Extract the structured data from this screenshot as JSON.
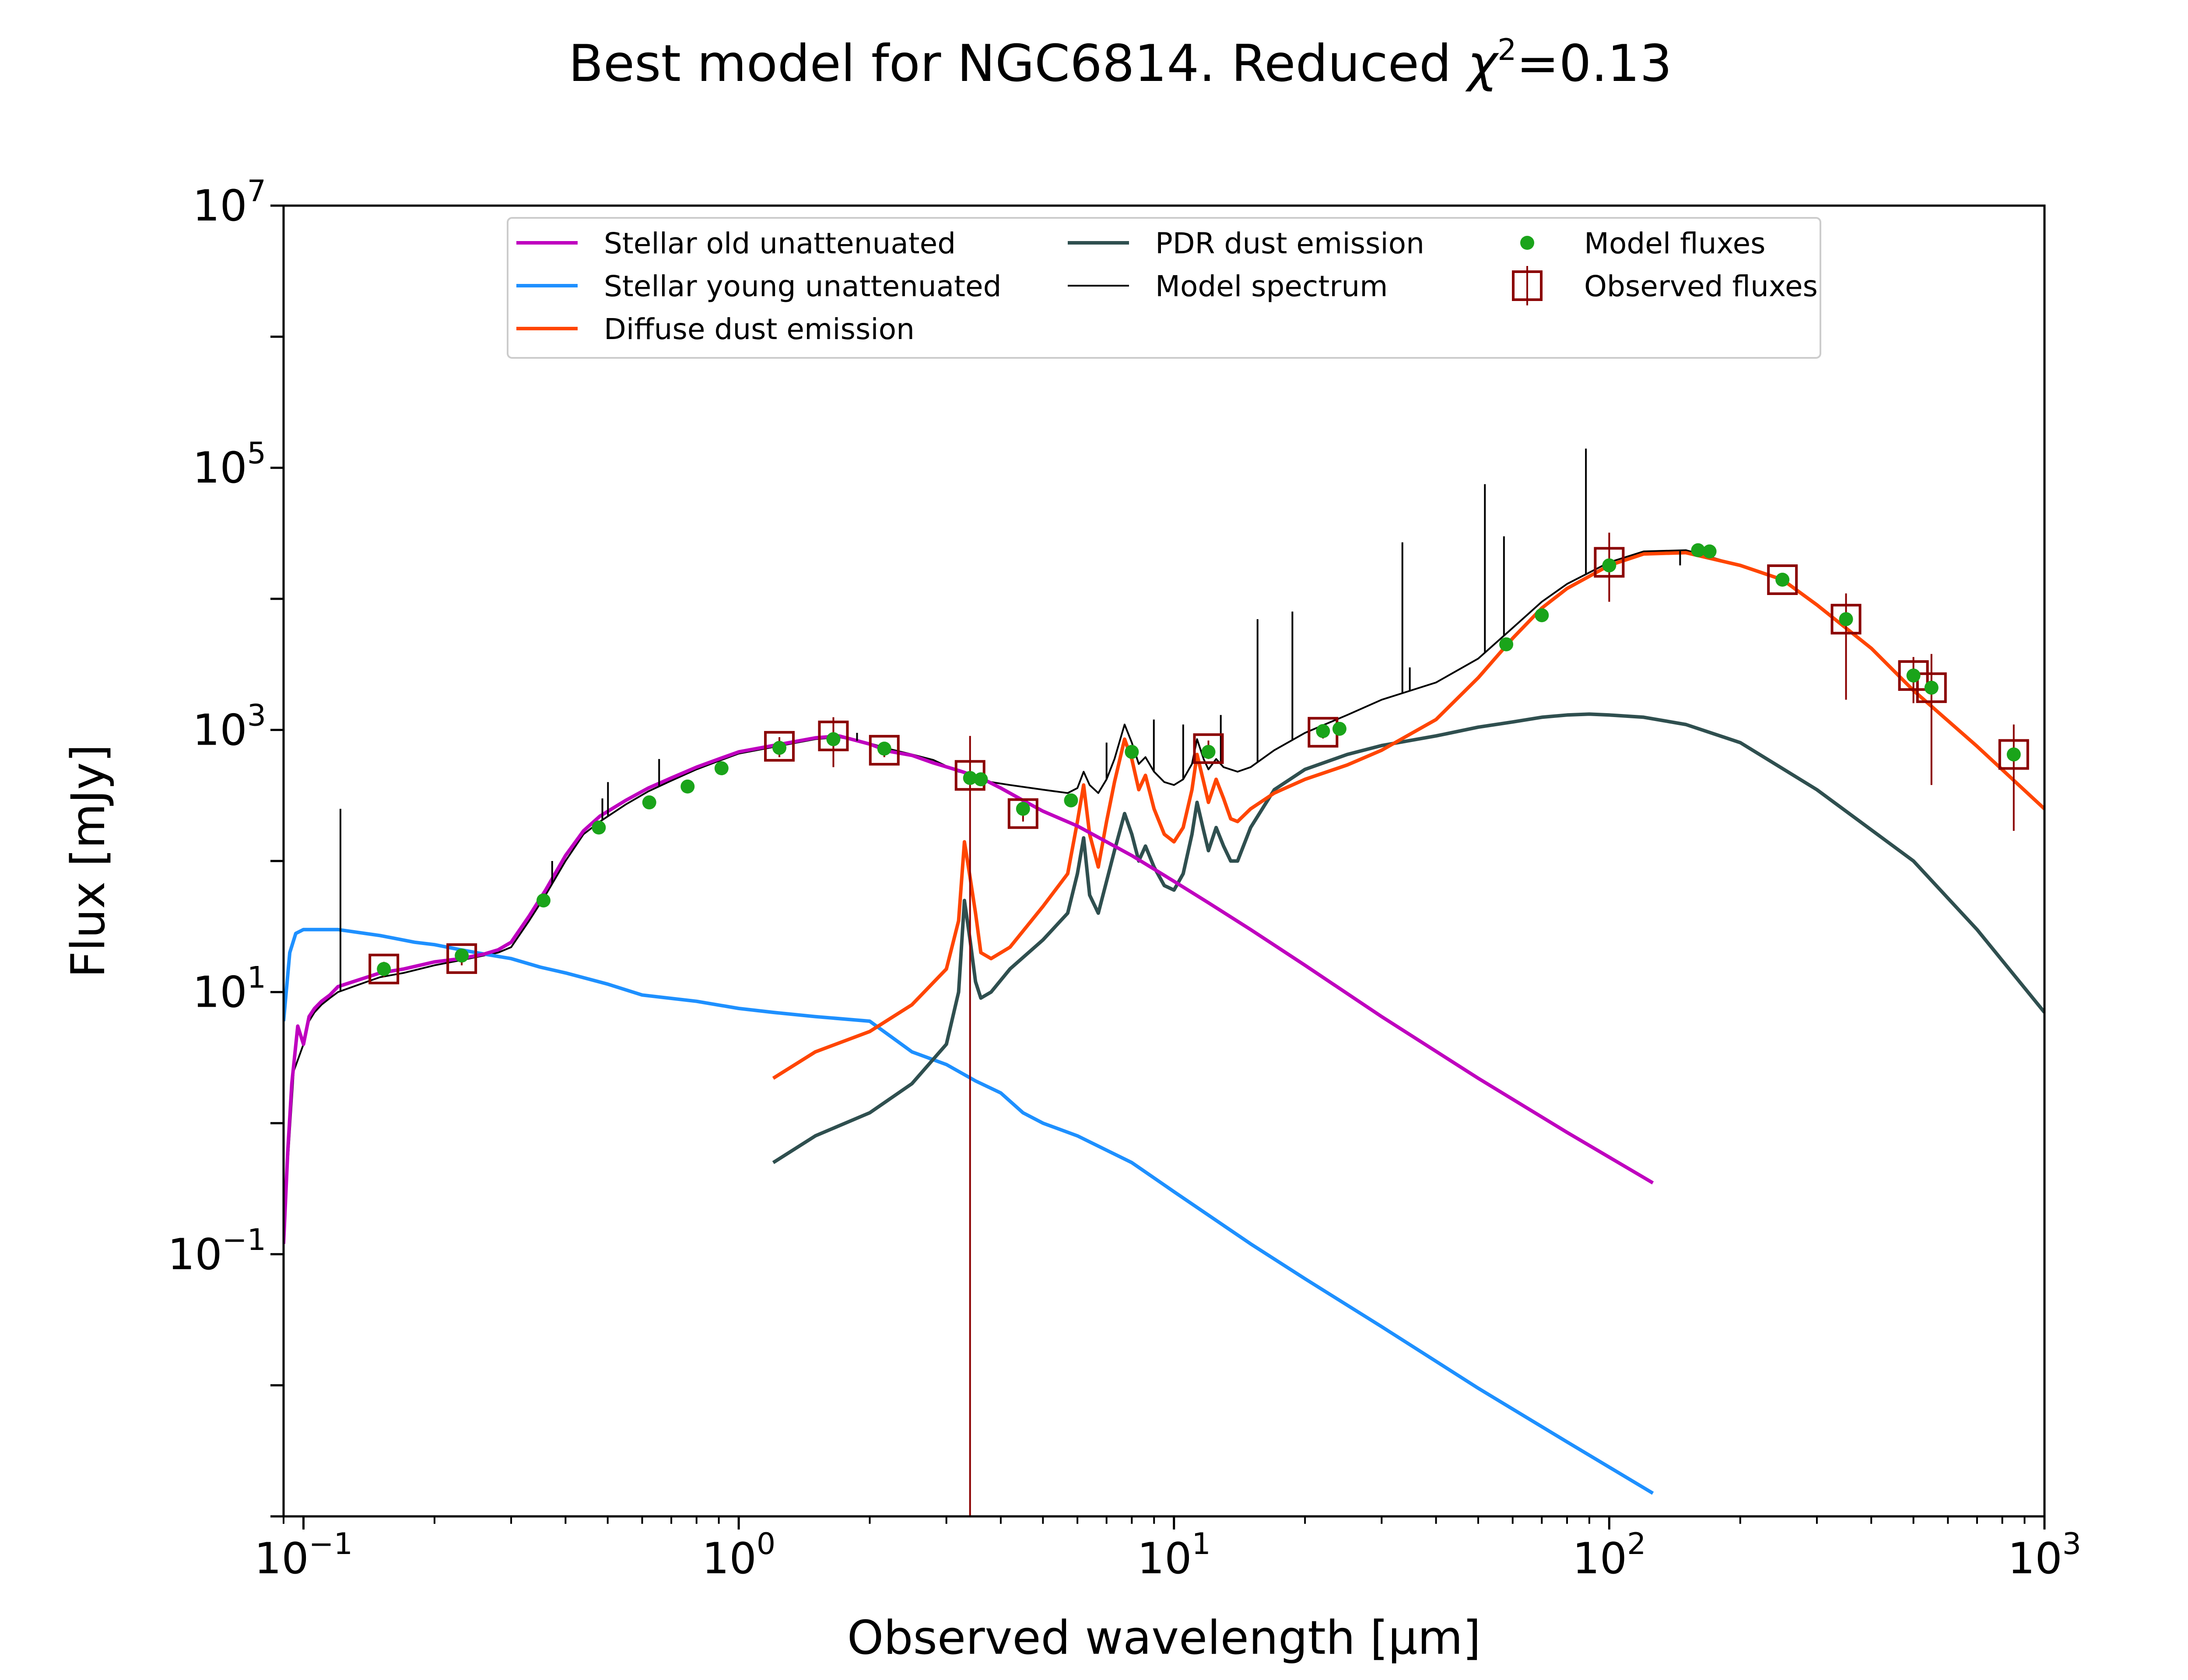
{
  "chart_data": {
    "type": "line",
    "title": "Best model for NGC6814. Reduced χ²=0.13",
    "title_parts": {
      "prefix": "Best model for NGC6814. Reduced ",
      "chi": "χ",
      "sup": "2",
      "suffix": "=0.13"
    },
    "xlabel": "Observed wavelength [μm]",
    "ylabel": "Flux [mJy]",
    "xscale": "log",
    "yscale": "log",
    "xlim": [
      0.09,
      1000
    ],
    "ylim": [
      0.001,
      10000000
    ],
    "x_ticks": [
      {
        "value": 0.1,
        "base": "10",
        "exp": "−1"
      },
      {
        "value": 1,
        "base": "10",
        "exp": "0"
      },
      {
        "value": 10,
        "base": "10",
        "exp": "1"
      },
      {
        "value": 100,
        "base": "10",
        "exp": "2"
      },
      {
        "value": 1000,
        "base": "10",
        "exp": "3"
      }
    ],
    "y_ticks": [
      {
        "value": 0.1,
        "base": "10",
        "exp": "−1"
      },
      {
        "value": 10,
        "base": "10",
        "exp": "1"
      },
      {
        "value": 1000,
        "base": "10",
        "exp": "3"
      },
      {
        "value": 100000,
        "base": "10",
        "exp": "5"
      },
      {
        "value": 10000000,
        "base": "10",
        "exp": "7"
      }
    ],
    "grid": false,
    "legend_position": "top-center",
    "series": [
      {
        "name": "Stellar old unattenuated",
        "color": "#bf00bf",
        "x": [
          0.09,
          0.092,
          0.094,
          0.097,
          0.1,
          0.103,
          0.106,
          0.11,
          0.115,
          0.12,
          0.13,
          0.14,
          0.15,
          0.17,
          0.2,
          0.23,
          0.26,
          0.28,
          0.3,
          0.33,
          0.36,
          0.4,
          0.44,
          0.48,
          0.55,
          0.62,
          0.7,
          0.8,
          0.9,
          1.0,
          1.2,
          1.5,
          1.7,
          2.0,
          2.2,
          2.5,
          2.8,
          3.2,
          3.6,
          4.0,
          4.5,
          5.0,
          6.0,
          7.0,
          8.0,
          10,
          12,
          15,
          20,
          30,
          50,
          80,
          126
        ],
        "y": [
          0.12,
          0.6,
          2.0,
          5.5,
          4.0,
          6.5,
          7.5,
          8.5,
          9.5,
          11,
          12,
          13,
          14,
          15,
          17,
          18,
          19.5,
          21,
          24,
          38,
          60,
          110,
          170,
          220,
          290,
          360,
          430,
          520,
          600,
          680,
          760,
          870,
          900,
          780,
          690,
          640,
          560,
          490,
          430,
          360,
          290,
          240,
          185,
          140,
          110,
          70,
          48,
          30,
          16,
          6.5,
          2.2,
          0.85,
          0.35
        ]
      },
      {
        "name": "Stellar young unattenuated",
        "color": "#1e90ff",
        "x": [
          0.09,
          0.093,
          0.096,
          0.1,
          0.12,
          0.15,
          0.18,
          0.2,
          0.23,
          0.26,
          0.3,
          0.35,
          0.4,
          0.5,
          0.6,
          0.8,
          1.0,
          1.2,
          1.5,
          2.0,
          2.5,
          3.0,
          3.5,
          4.0,
          4.5,
          5.0,
          6.0,
          8.0,
          10,
          15,
          20,
          30,
          50,
          80,
          126
        ],
        "y": [
          6,
          20,
          28,
          30,
          30,
          27,
          24,
          23,
          21,
          19.5,
          18,
          15.5,
          14,
          11.5,
          9.5,
          8.5,
          7.5,
          7.0,
          6.5,
          6.0,
          3.5,
          2.8,
          2.1,
          1.7,
          1.2,
          1.0,
          0.8,
          0.5,
          0.3,
          0.12,
          0.065,
          0.028,
          0.0095,
          0.0037,
          0.0015
        ]
      },
      {
        "name": "Diffuse dust emission",
        "color": "#ff4500",
        "x": [
          1.2,
          1.5,
          2.0,
          2.5,
          3.0,
          3.2,
          3.3,
          3.4,
          3.5,
          3.6,
          3.8,
          4.2,
          5.0,
          5.7,
          6.0,
          6.2,
          6.4,
          6.7,
          7.0,
          7.3,
          7.7,
          8.0,
          8.3,
          8.6,
          9.0,
          9.5,
          10.0,
          10.5,
          11.0,
          11.3,
          11.7,
          12.0,
          12.5,
          13.0,
          13.5,
          14.0,
          15.0,
          17,
          20,
          25,
          30,
          40,
          50,
          60,
          70,
          80,
          100,
          120,
          150,
          200,
          250,
          300,
          400,
          500,
          700,
          1000
        ],
        "y": [
          2.2,
          3.5,
          5.0,
          8,
          15,
          35,
          140,
          75,
          40,
          20,
          18,
          22,
          45,
          80,
          200,
          380,
          160,
          90,
          200,
          400,
          850,
          600,
          350,
          450,
          250,
          160,
          140,
          180,
          350,
          650,
          400,
          280,
          420,
          300,
          210,
          200,
          250,
          330,
          420,
          540,
          700,
          1200,
          2500,
          5000,
          8500,
          12000,
          18000,
          22000,
          22500,
          18000,
          14000,
          9000,
          4200,
          2000,
          750,
          250
        ]
      },
      {
        "name": "PDR dust emission",
        "color": "#2f4f4f",
        "x": [
          1.2,
          1.5,
          2.0,
          2.5,
          3.0,
          3.2,
          3.3,
          3.4,
          3.5,
          3.6,
          3.8,
          4.2,
          5.0,
          5.7,
          6.0,
          6.2,
          6.4,
          6.7,
          7.0,
          7.3,
          7.7,
          8.0,
          8.3,
          8.6,
          9.0,
          9.5,
          10.0,
          10.5,
          11.0,
          11.3,
          11.7,
          12.0,
          12.5,
          13.0,
          13.5,
          14.0,
          15.0,
          17,
          20,
          25,
          30,
          40,
          50,
          60,
          70,
          80,
          90,
          100,
          120,
          150,
          200,
          300,
          500,
          700,
          1000
        ],
        "y": [
          0.5,
          0.8,
          1.2,
          2.0,
          4.0,
          10,
          50,
          25,
          12,
          9,
          10,
          15,
          25,
          40,
          80,
          150,
          55,
          40,
          70,
          120,
          230,
          160,
          100,
          130,
          90,
          65,
          60,
          80,
          160,
          280,
          170,
          120,
          180,
          130,
          100,
          100,
          180,
          350,
          500,
          650,
          760,
          900,
          1050,
          1150,
          1250,
          1300,
          1320,
          1300,
          1250,
          1100,
          800,
          350,
          100,
          30,
          7
        ]
      },
      {
        "name": "Model spectrum",
        "color": "#000000",
        "x": [
          0.09,
          0.095,
          0.1,
          0.103,
          0.106,
          0.11,
          0.115,
          0.12,
          0.13,
          0.14,
          0.15,
          0.17,
          0.2,
          0.23,
          0.26,
          0.28,
          0.3,
          0.33,
          0.36,
          0.4,
          0.44,
          0.48,
          0.55,
          0.62,
          0.7,
          0.8,
          0.9,
          1.0,
          1.2,
          1.5,
          1.7,
          2.0,
          2.2,
          2.5,
          2.8,
          3.0,
          3.2,
          3.3,
          3.4,
          3.5,
          3.6,
          3.8,
          4.2,
          5.0,
          5.7,
          6.0,
          6.2,
          6.4,
          6.7,
          7.0,
          7.3,
          7.7,
          8.0,
          8.3,
          8.6,
          9.0,
          9.5,
          10.0,
          10.5,
          11.0,
          11.3,
          11.7,
          12.0,
          12.5,
          13.0,
          14.0,
          15.0,
          17,
          20,
          25,
          30,
          40,
          50,
          60,
          70,
          80,
          100,
          120,
          150,
          200,
          250,
          300,
          400,
          500,
          700,
          1000
        ],
        "y": [
          0.15,
          2.5,
          4,
          6,
          7,
          8,
          9,
          10,
          11,
          12,
          13,
          14,
          16,
          17.5,
          19,
          20,
          22,
          35,
          55,
          100,
          160,
          200,
          270,
          340,
          410,
          500,
          580,
          660,
          740,
          850,
          880,
          790,
          720,
          650,
          590,
          530,
          480,
          470,
          460,
          440,
          430,
          400,
          380,
          350,
          330,
          360,
          480,
          380,
          330,
          420,
          600,
          1100,
          800,
          550,
          620,
          480,
          400,
          380,
          420,
          550,
          850,
          600,
          500,
          600,
          520,
          480,
          520,
          700,
          950,
          1300,
          1700,
          2300,
          3500,
          6000,
          9500,
          13000,
          19000,
          23000,
          23500,
          18000,
          14000,
          9000,
          4200,
          2000,
          750,
          250
        ]
      }
    ],
    "emission_lines": [
      {
        "x": 0.1216,
        "y": 250
      },
      {
        "x": 0.3727,
        "y": 100
      },
      {
        "x": 0.4861,
        "y": 300
      },
      {
        "x": 0.5007,
        "y": 400
      },
      {
        "x": 0.6563,
        "y": 600
      },
      {
        "x": 1.87,
        "y": 950
      },
      {
        "x": 7.0,
        "y": 800
      },
      {
        "x": 8.99,
        "y": 1200
      },
      {
        "x": 10.5,
        "y": 1100
      },
      {
        "x": 12.81,
        "y": 1300
      },
      {
        "x": 15.56,
        "y": 7000
      },
      {
        "x": 18.71,
        "y": 8000
      },
      {
        "x": 33.48,
        "y": 27000
      },
      {
        "x": 34.82,
        "y": 3000
      },
      {
        "x": 51.8,
        "y": 75000
      },
      {
        "x": 57.3,
        "y": 30000
      },
      {
        "x": 88.4,
        "y": 140000
      },
      {
        "x": 145.5,
        "y": 18000
      },
      {
        "x": 157.7,
        "y": 25000
      }
    ],
    "model_fluxes": {
      "name": "Model fluxes",
      "color": "#1aa41a",
      "x": [
        0.153,
        0.231,
        0.356,
        0.477,
        0.623,
        0.763,
        0.913,
        1.24,
        1.65,
        2.16,
        3.4,
        3.6,
        4.5,
        5.8,
        8.0,
        12.0,
        22.0,
        24.0,
        58,
        70,
        100,
        160,
        170,
        250,
        350,
        500,
        550,
        850
      ],
      "y": [
        15,
        19,
        50,
        180,
        280,
        370,
        510,
        730,
        850,
        720,
        430,
        420,
        250,
        290,
        680,
        680,
        980,
        1020,
        4500,
        7500,
        18000,
        23500,
        23000,
        14000,
        7000,
        2600,
        2100,
        650
      ]
    },
    "observed_fluxes": {
      "name": "Observed fluxes",
      "color": "#8b0000",
      "x": [
        0.153,
        0.231,
        1.24,
        1.65,
        2.16,
        3.4,
        4.5,
        12.0,
        22.0,
        100,
        250,
        350,
        500,
        550,
        850
      ],
      "y": [
        15,
        18,
        750,
        900,
        700,
        450,
        230,
        720,
        960,
        19000,
        14000,
        7000,
        2600,
        2100,
        650
      ],
      "err_low": [
        13,
        16,
        620,
        520,
        620,
        0.001,
        200,
        600,
        860,
        9500,
        12500,
        1700,
        1600,
        380,
        170
      ],
      "err_high": [
        17,
        20,
        880,
        1250,
        780,
        900,
        260,
        830,
        1060,
        32000,
        15500,
        11000,
        3600,
        3800,
        1100
      ]
    }
  }
}
